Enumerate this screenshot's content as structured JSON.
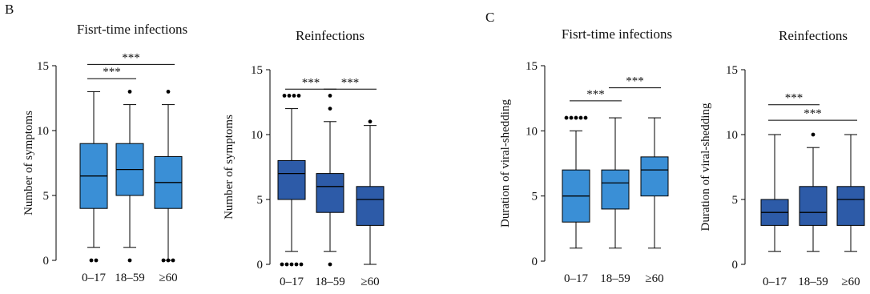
{
  "panels": [
    {
      "letter": "B"
    },
    {
      "letter": "C"
    }
  ],
  "colors": {
    "light_blue": "#3a8fd6",
    "dark_blue": "#2d5ba8",
    "line": "#000000"
  },
  "chart_data": [
    {
      "type": "box",
      "title": "Fisrt-time infections",
      "ylabel": "Number of symptoms",
      "ylim": [
        0,
        15
      ],
      "yticks": [
        "0",
        "5",
        "10",
        "15"
      ],
      "categories": [
        "0–17",
        "18–59",
        "≥60"
      ],
      "fill": "light_blue",
      "boxes": [
        {
          "whisker_low": 1,
          "q1": 4,
          "median": 6.5,
          "q3": 9,
          "whisker_high": 13,
          "outliers": [
            0,
            0
          ]
        },
        {
          "whisker_low": 1,
          "q1": 5,
          "median": 7,
          "q3": 9,
          "whisker_high": 12,
          "outliers": [
            13,
            0
          ]
        },
        {
          "whisker_low": 0,
          "q1": 4,
          "median": 6,
          "q3": 8,
          "whisker_high": 12,
          "outliers": [
            13,
            0,
            0,
            0
          ]
        }
      ],
      "significance": [
        {
          "from": 0,
          "to": 1,
          "label": "***",
          "y": 14.0
        },
        {
          "from": 0,
          "to": 2,
          "label": "***",
          "y": 15.1
        }
      ]
    },
    {
      "type": "box",
      "title": "Reinfections",
      "ylabel": "Number of symptoms",
      "ylim": [
        0,
        15
      ],
      "yticks": [
        "0",
        "5",
        "10",
        "15"
      ],
      "categories": [
        "0–17",
        "18–59",
        "≥60"
      ],
      "fill": "dark_blue",
      "boxes": [
        {
          "whisker_low": 1,
          "q1": 5,
          "median": 7,
          "q3": 8,
          "whisker_high": 12,
          "outliers": [
            13,
            13,
            13,
            13,
            0,
            0,
            0,
            0,
            0
          ]
        },
        {
          "whisker_low": 1,
          "q1": 4,
          "median": 6,
          "q3": 7,
          "whisker_high": 11,
          "outliers": [
            13,
            12,
            0
          ]
        },
        {
          "whisker_low": 0,
          "q1": 3,
          "median": 5,
          "q3": 6,
          "whisker_high": 10.7,
          "outliers": [
            11
          ]
        }
      ],
      "significance": [
        {
          "from": 0,
          "to": 1,
          "label": "***",
          "y": 13.5
        },
        {
          "from": 1,
          "to": 2,
          "label": "***",
          "y": 13.5
        }
      ]
    },
    {
      "type": "box",
      "title": "Fisrt-time infections",
      "ylabel": "Duration of viral-shedding",
      "ylim": [
        0,
        15
      ],
      "yticks": [
        "0",
        "5",
        "10",
        "15"
      ],
      "categories": [
        "0–17",
        "18–59",
        "≥60"
      ],
      "fill": "light_blue",
      "boxes": [
        {
          "whisker_low": 1,
          "q1": 3,
          "median": 5,
          "q3": 7,
          "whisker_high": 10,
          "outliers": [
            11,
            11,
            11,
            11,
            11
          ]
        },
        {
          "whisker_low": 1,
          "q1": 4,
          "median": 6,
          "q3": 7,
          "whisker_high": 11,
          "outliers": []
        },
        {
          "whisker_low": 1,
          "q1": 5,
          "median": 7,
          "q3": 8,
          "whisker_high": 11,
          "outliers": []
        }
      ],
      "significance": [
        {
          "from": 0,
          "to": 1,
          "label": "***",
          "y": 12.3
        },
        {
          "from": 1,
          "to": 2,
          "label": "***",
          "y": 13.3
        }
      ]
    },
    {
      "type": "box",
      "title": "Reinfections",
      "ylabel": "Duration of viral-shedding",
      "ylim": [
        0,
        15
      ],
      "yticks": [
        "0",
        "5",
        "10",
        "15"
      ],
      "categories": [
        "0–17",
        "18–59",
        "≥60"
      ],
      "fill": "dark_blue",
      "boxes": [
        {
          "whisker_low": 1,
          "q1": 3,
          "median": 4,
          "q3": 5,
          "whisker_high": 10,
          "outliers": []
        },
        {
          "whisker_low": 1,
          "q1": 3,
          "median": 4,
          "q3": 6,
          "whisker_high": 9,
          "outliers": [
            10
          ]
        },
        {
          "whisker_low": 1,
          "q1": 3,
          "median": 5,
          "q3": 6,
          "whisker_high": 10,
          "outliers": []
        }
      ],
      "significance": [
        {
          "from": 0,
          "to": 1,
          "label": "***",
          "y": 12.3
        },
        {
          "from": 0,
          "to": 2,
          "label": "***",
          "y": 11.1
        }
      ]
    }
  ]
}
